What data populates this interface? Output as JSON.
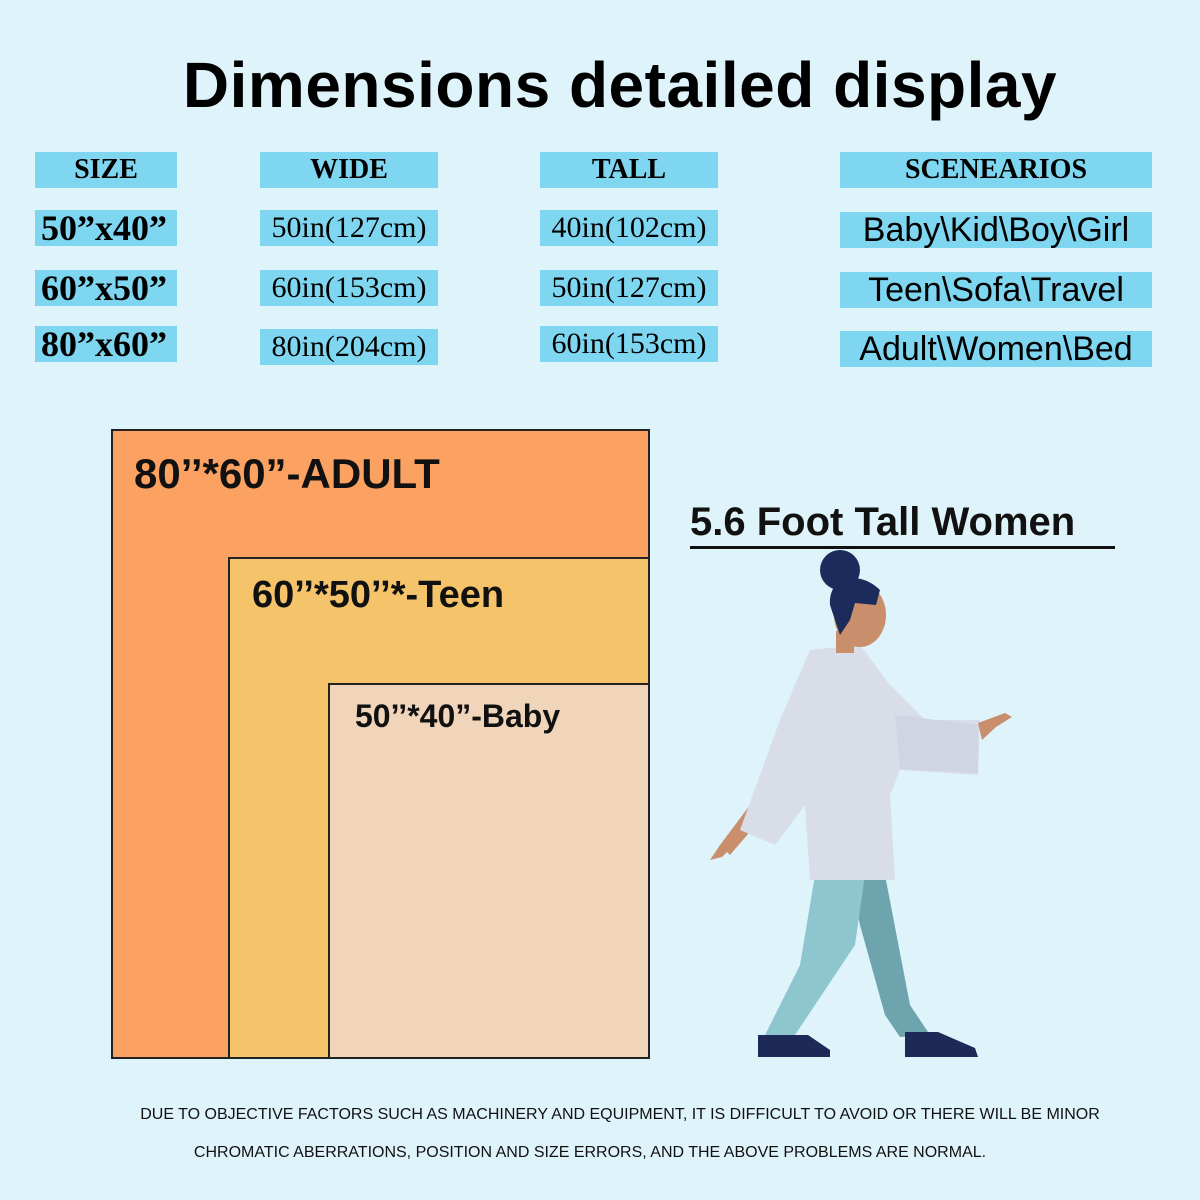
{
  "title": "Dimensions detailed display",
  "table": {
    "headers": [
      "SIZE",
      "WIDE",
      "TALL",
      "SCENEARIOS"
    ],
    "rows": [
      {
        "size": "50”x40”",
        "wide": "50in(127cm)",
        "tall": "40in(102cm)",
        "scenarios": "Baby\\Kid\\Boy\\Girl"
      },
      {
        "size": "60”x50”",
        "wide": "60in(153cm)",
        "tall": "50in(127cm)",
        "scenarios": "Teen\\Sofa\\Travel"
      },
      {
        "size": "80”x60”",
        "wide": "80in(204cm)",
        "tall": "60in(153cm)",
        "scenarios": "Adult\\Women\\Bed"
      }
    ]
  },
  "blankets": {
    "adult": {
      "label": "80’’*60”-ADULT",
      "color": "#fba162"
    },
    "teen": {
      "label": "60’’*50’’*-Teen",
      "color": "#f5c46a"
    },
    "baby": {
      "label": "50’’*40”-Baby",
      "color": "#f0d5ba"
    }
  },
  "woman": {
    "label": "5.6 Foot Tall Women",
    "icon": "walking-woman-icon"
  },
  "disclaimer": {
    "line1": "DUE TO OBJECTIVE FACTORS SUCH AS MACHINERY AND EQUIPMENT, IT IS DIFFICULT TO AVOID OR THERE WILL BE MINOR",
    "line2": "CHROMATIC ABERRATIONS, POSITION AND SIZE ERRORS, AND THE ABOVE PROBLEMS ARE NORMAL."
  },
  "colors": {
    "background": "#dff3fa",
    "table_cell": "#7fd6f0"
  }
}
